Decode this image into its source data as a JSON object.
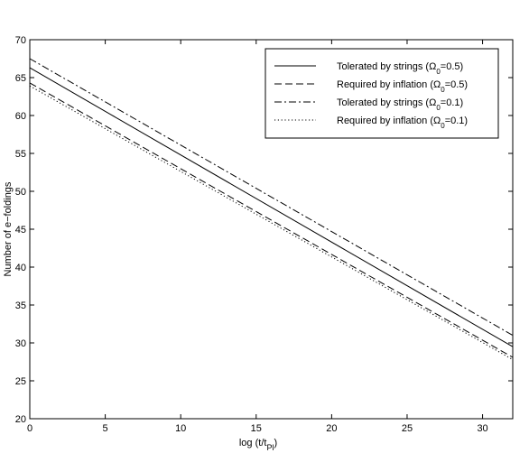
{
  "chart_data": {
    "type": "line",
    "xlabel_main": "log (t/t",
    "xlabel_sub": "Pl",
    "xlabel_close": ")",
    "ylabel": "Number of e−foldings",
    "xlim": [
      0,
      32
    ],
    "ylim": [
      20,
      70
    ],
    "xticks": [
      0,
      5,
      10,
      15,
      20,
      25,
      30
    ],
    "yticks": [
      20,
      25,
      30,
      35,
      40,
      45,
      50,
      55,
      60,
      65,
      70
    ],
    "grid": false,
    "legend_position": "top-right",
    "series": [
      {
        "label_pre": "Tolerated by strings (",
        "omega": "Ω",
        "omega_sub": "0",
        "label_post": "=0.5)",
        "dash": "solid",
        "color": "#000000",
        "x": [
          0,
          32
        ],
        "y": [
          66.3,
          29.5
        ]
      },
      {
        "label_pre": "Required by inflation (",
        "omega": "Ω",
        "omega_sub": "0",
        "label_post": "=0.5)",
        "dash": "dashed",
        "color": "#000000",
        "x": [
          0,
          32
        ],
        "y": [
          64.3,
          28.1
        ]
      },
      {
        "label_pre": "Tolerated by strings (",
        "omega": "Ω",
        "omega_sub": "0",
        "label_post": "=0.1)",
        "dash": "dashdot",
        "color": "#000000",
        "x": [
          0,
          32
        ],
        "y": [
          67.5,
          31.0
        ]
      },
      {
        "label_pre": "Required by inflation (",
        "omega": "Ω",
        "omega_sub": "0",
        "label_post": "=0.1)",
        "dash": "dotted",
        "color": "#000000",
        "x": [
          0,
          32
        ],
        "y": [
          63.9,
          27.8
        ]
      }
    ]
  }
}
